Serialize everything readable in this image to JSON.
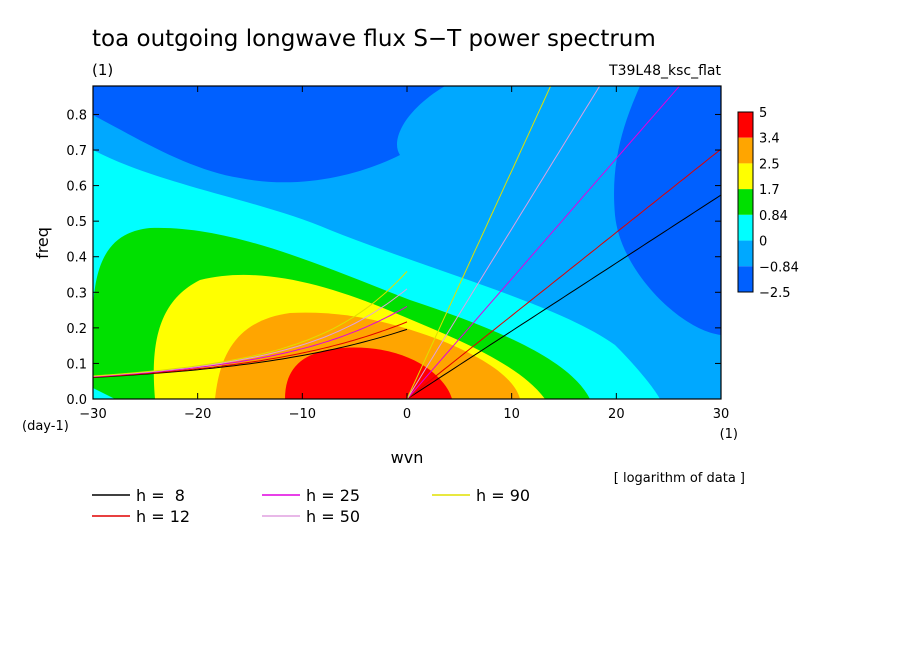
{
  "chart_data": {
    "type": "heatmap",
    "title": "toa outgoing longwave flux S−T power spectrum",
    "subtitle_left": "(1)",
    "subtitle_right": "T39L48_ksc_flat",
    "xlabel": "wvn",
    "ylabel": "freq",
    "x_unit": "(1)",
    "y_unit": "(day-1)",
    "note": "[ logarithm of data ]",
    "xlim": [
      -30,
      30
    ],
    "ylim": [
      0,
      0.88
    ],
    "x_ticks": [
      -30,
      -20,
      -10,
      0,
      10,
      20,
      30
    ],
    "y_ticks": [
      0.0,
      0.1,
      0.2,
      0.3,
      0.4,
      0.5,
      0.6,
      0.7,
      0.8
    ],
    "colorbar": {
      "levels": [
        "5",
        "3.4",
        "2.5",
        "1.7",
        "0.84",
        "0",
        "−0.84",
        "−2.5"
      ],
      "colors": [
        "#ff0000",
        "#ffa500",
        "#ffff00",
        "#00e000",
        "#00ffff",
        "#00a8ff",
        "#0060ff"
      ]
    },
    "legend": [
      {
        "label": "h =  8",
        "color": "#000000"
      },
      {
        "label": "h = 12",
        "color": "#e00000"
      },
      {
        "label": "h = 25",
        "color": "#e000e0"
      },
      {
        "label": "h = 50",
        "color": "#e0a0e0"
      },
      {
        "label": "h = 90",
        "color": "#e0e000"
      }
    ]
  }
}
